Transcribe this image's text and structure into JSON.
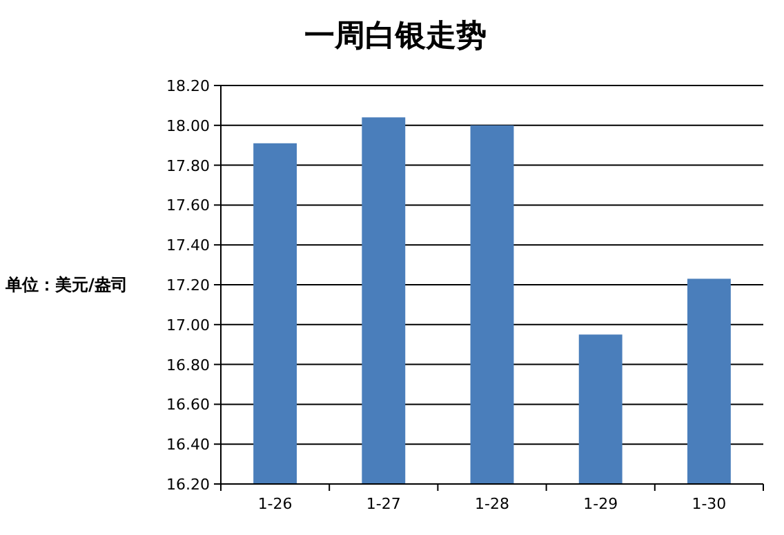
{
  "chart_data": {
    "type": "bar",
    "title": "一周白银走势",
    "ylabel": "单位：美元/盎司",
    "categories": [
      "1-26",
      "1-27",
      "1-28",
      "1-29",
      "1-30"
    ],
    "values": [
      17.91,
      18.04,
      18.0,
      16.95,
      17.23
    ],
    "color": "#4a7ebb",
    "ylim": [
      16.2,
      18.2
    ],
    "yticks": [
      {
        "value": 16.2,
        "label": "16.20"
      },
      {
        "value": 16.4,
        "label": "16.40"
      },
      {
        "value": 16.6,
        "label": "16.60"
      },
      {
        "value": 16.8,
        "label": "16.80"
      },
      {
        "value": 17.0,
        "label": "17.00"
      },
      {
        "value": 17.2,
        "label": "17.20"
      },
      {
        "value": 17.4,
        "label": "17.40"
      },
      {
        "value": 17.6,
        "label": "17.60"
      },
      {
        "value": 17.8,
        "label": "17.80"
      },
      {
        "value": 18.0,
        "label": "18.00"
      },
      {
        "value": 18.2,
        "label": "18.20"
      }
    ],
    "grid": "y"
  }
}
